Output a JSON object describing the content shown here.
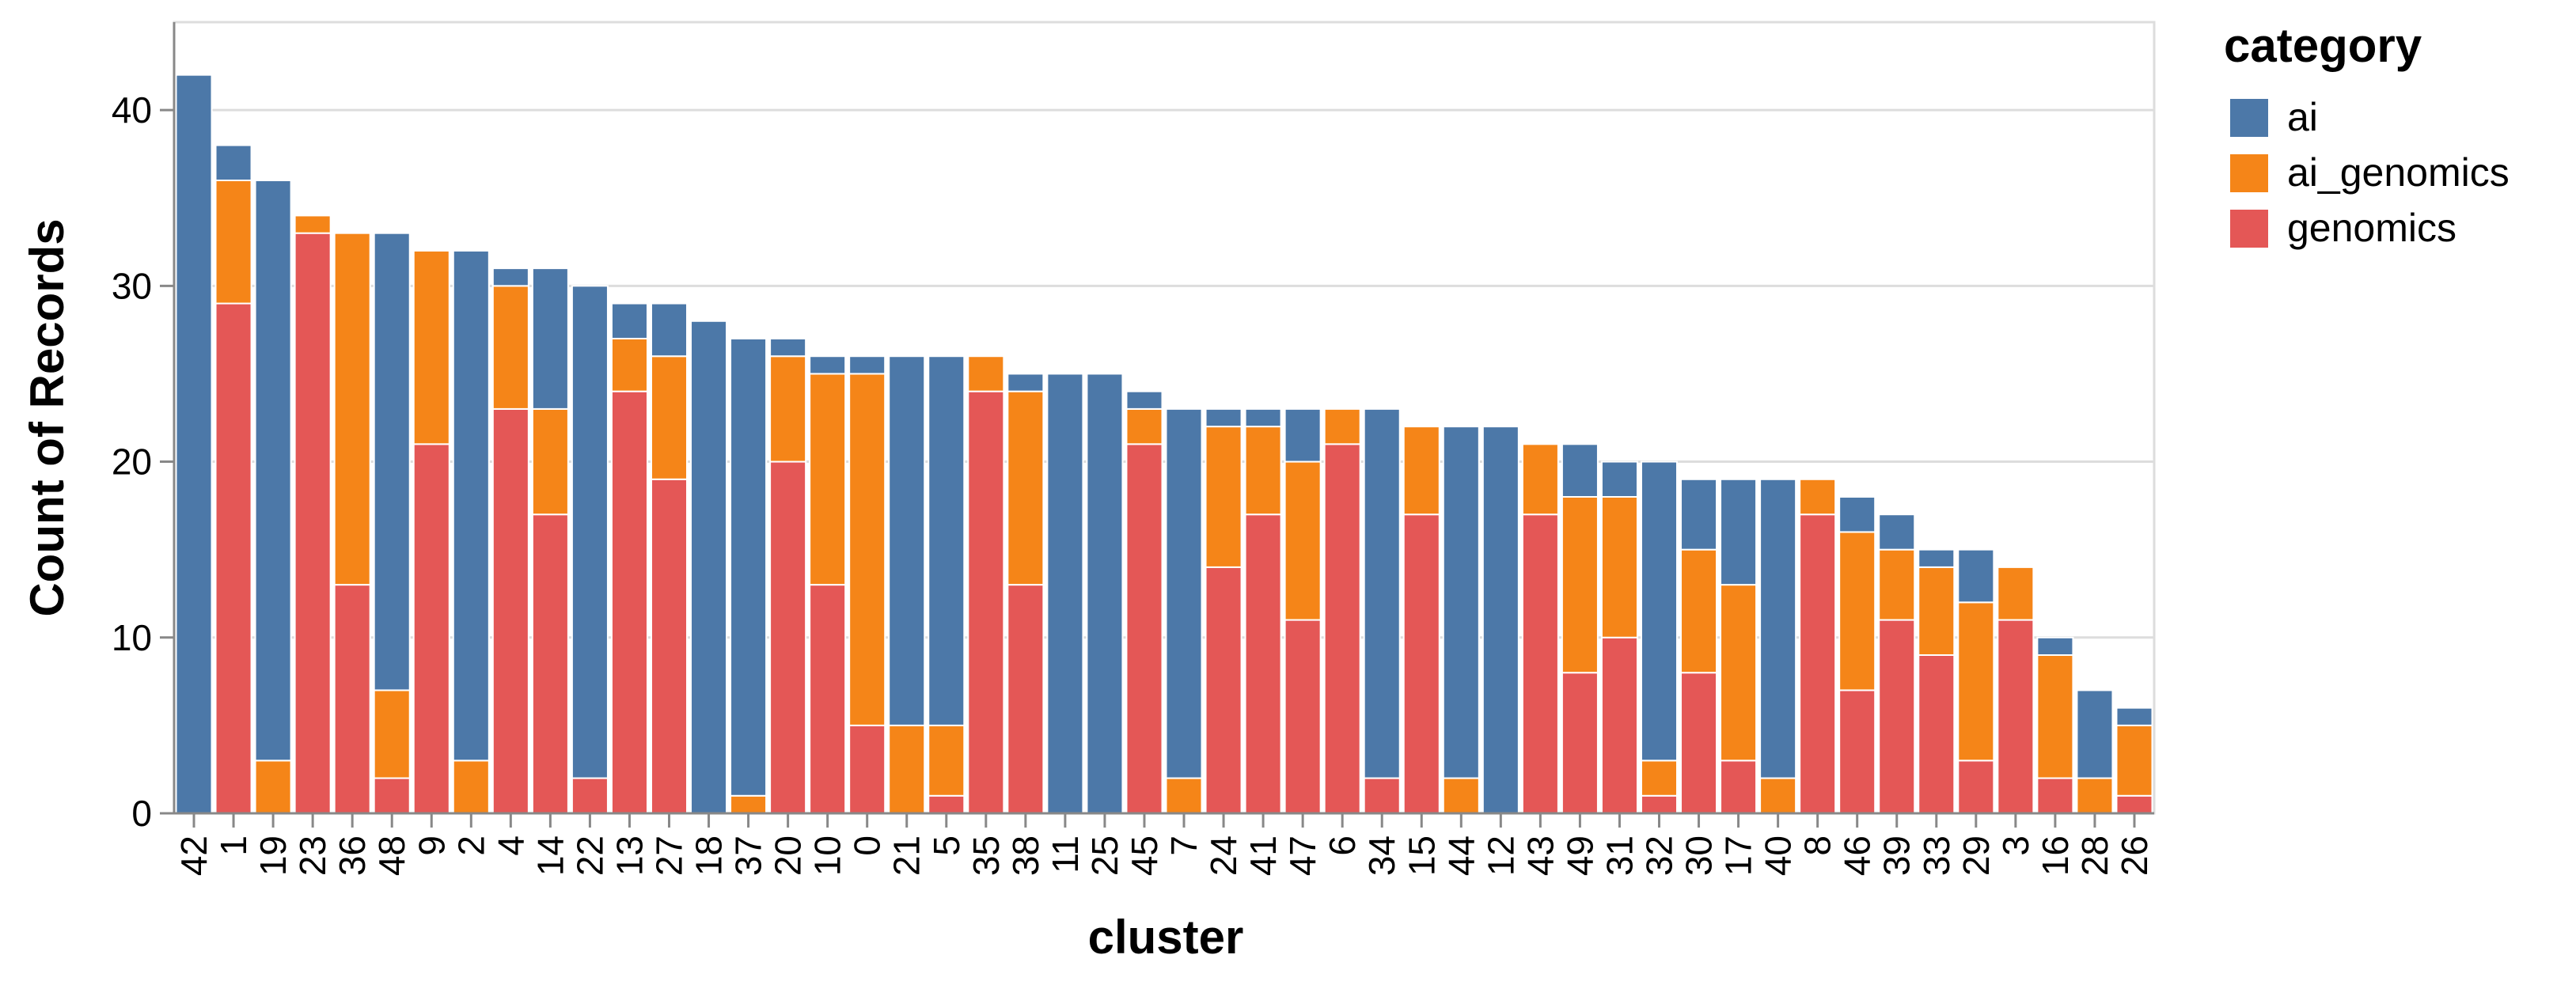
{
  "chart_data": {
    "type": "bar",
    "stacked": true,
    "xlabel": "cluster",
    "ylabel": "Count of Records",
    "ylim": [
      0,
      45
    ],
    "yticks": [
      0,
      10,
      20,
      30,
      40
    ],
    "grid": true,
    "legend": {
      "title": "category",
      "placement": "right"
    },
    "categories": [
      "42",
      "1",
      "19",
      "23",
      "36",
      "48",
      "9",
      "2",
      "4",
      "14",
      "22",
      "13",
      "27",
      "18",
      "37",
      "20",
      "10",
      "0",
      "21",
      "5",
      "35",
      "38",
      "11",
      "25",
      "45",
      "7",
      "24",
      "41",
      "47",
      "6",
      "34",
      "15",
      "44",
      "12",
      "43",
      "49",
      "31",
      "32",
      "30",
      "17",
      "40",
      "8",
      "46",
      "39",
      "33",
      "29",
      "3",
      "16",
      "28",
      "26"
    ],
    "series": [
      {
        "name": "genomics",
        "color": "#e45756",
        "values": [
          0,
          29,
          0,
          33,
          13,
          2,
          21,
          0,
          23,
          17,
          2,
          24,
          19,
          0,
          0,
          20,
          13,
          5,
          0,
          1,
          24,
          13,
          0,
          0,
          21,
          0,
          14,
          17,
          11,
          21,
          2,
          17,
          0,
          0,
          17,
          8,
          10,
          1,
          8,
          3,
          0,
          17,
          7,
          11,
          9,
          3,
          11,
          2,
          0,
          1
        ]
      },
      {
        "name": "ai_genomics",
        "color": "#f58518",
        "values": [
          0,
          7,
          3,
          1,
          20,
          5,
          11,
          3,
          7,
          6,
          0,
          3,
          7,
          0,
          1,
          6,
          12,
          20,
          5,
          4,
          2,
          11,
          0,
          0,
          2,
          2,
          8,
          5,
          9,
          2,
          0,
          5,
          2,
          0,
          4,
          10,
          8,
          2,
          7,
          10,
          2,
          2,
          9,
          4,
          5,
          9,
          3,
          7,
          2,
          4
        ]
      },
      {
        "name": "ai",
        "color": "#4c78a8",
        "values": [
          42,
          2,
          33,
          0,
          0,
          26,
          0,
          29,
          1,
          8,
          28,
          2,
          3,
          28,
          26,
          1,
          1,
          1,
          21,
          21,
          0,
          1,
          25,
          25,
          1,
          21,
          1,
          1,
          3,
          0,
          21,
          0,
          20,
          22,
          0,
          3,
          2,
          17,
          4,
          6,
          17,
          0,
          2,
          2,
          1,
          3,
          0,
          1,
          5,
          1
        ]
      }
    ]
  }
}
